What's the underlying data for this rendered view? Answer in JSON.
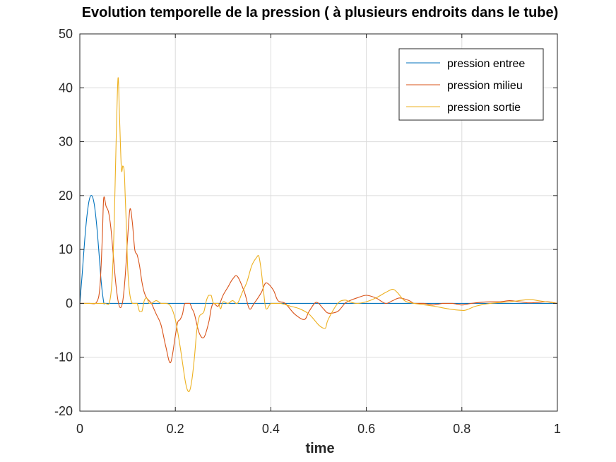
{
  "chart_data": {
    "type": "line",
    "title": "Evolution temporelle de la pression ( à plusieurs endroits dans le tube)",
    "xlabel": "time",
    "ylabel": "",
    "xlim": [
      0,
      1
    ],
    "ylim": [
      -20,
      50
    ],
    "xticks": [
      0,
      0.2,
      0.4,
      0.6,
      0.8,
      1
    ],
    "xtick_labels": [
      "0",
      "0.2",
      "0.4",
      "0.6",
      "0.8",
      "1"
    ],
    "yticks": [
      -20,
      -10,
      0,
      10,
      20,
      30,
      40,
      50
    ],
    "ytick_labels": [
      "-20",
      "-10",
      "0",
      "10",
      "20",
      "30",
      "40",
      "50"
    ],
    "grid": true,
    "legend_position": "top-right",
    "series": [
      {
        "name": "pression entree",
        "color": "#0072BD",
        "x": [
          0,
          0.005,
          0.01,
          0.015,
          0.02,
          0.025,
          0.03,
          0.035,
          0.04,
          0.045,
          0.05,
          0.052,
          0.06,
          0.2,
          0.4,
          0.6,
          0.8,
          1.0
        ],
        "y": [
          0,
          5.5,
          11.5,
          16.3,
          19.3,
          20.0,
          18.5,
          14.8,
          9.5,
          3.8,
          0.2,
          0,
          0,
          0,
          0,
          0,
          0,
          0
        ]
      },
      {
        "name": "pression milieu",
        "color": "#D95319",
        "x": [
          0,
          0.02,
          0.035,
          0.042,
          0.047,
          0.05,
          0.055,
          0.06,
          0.065,
          0.07,
          0.075,
          0.08,
          0.085,
          0.09,
          0.095,
          0.1,
          0.105,
          0.11,
          0.115,
          0.12,
          0.125,
          0.13,
          0.135,
          0.14,
          0.145,
          0.15,
          0.155,
          0.16,
          0.17,
          0.18,
          0.19,
          0.2,
          0.205,
          0.21,
          0.215,
          0.22,
          0.23,
          0.235,
          0.24,
          0.25,
          0.26,
          0.27,
          0.275,
          0.28,
          0.29,
          0.3,
          0.31,
          0.32,
          0.33,
          0.345,
          0.355,
          0.365,
          0.38,
          0.39,
          0.405,
          0.415,
          0.43,
          0.45,
          0.47,
          0.48,
          0.495,
          0.51,
          0.52,
          0.54,
          0.555,
          0.565,
          0.58,
          0.6,
          0.62,
          0.64,
          0.655,
          0.67,
          0.69,
          0.7,
          0.72,
          0.74,
          0.76,
          0.78,
          0.8,
          0.82,
          0.84,
          0.86,
          0.88,
          0.9,
          0.92,
          0.94,
          0.96,
          0.98,
          1.0
        ],
        "y": [
          0,
          0,
          0.2,
          3,
          12,
          19.5,
          18,
          17,
          14,
          9,
          4,
          0.5,
          -0.8,
          0.5,
          5,
          12,
          17.5,
          15,
          10,
          9,
          7,
          4,
          2,
          1,
          0.5,
          0,
          -1,
          -2,
          -4,
          -8,
          -11,
          -6,
          -3.5,
          -3,
          -2,
          0,
          0,
          -1,
          -2,
          -5.5,
          -6.3,
          -3.5,
          -1,
          0,
          -0.5,
          1.5,
          3,
          4.5,
          5,
          2,
          -1,
          0,
          2,
          3.8,
          2.5,
          0.5,
          0,
          -2,
          -3,
          -1.5,
          0.2,
          -1,
          -1.8,
          -1.5,
          0,
          0.5,
          1,
          1.5,
          1,
          0,
          0.5,
          1,
          0.5,
          0,
          0,
          -0.3,
          0,
          0,
          -0.3,
          0,
          0.2,
          0.3,
          0.3,
          0.5,
          0.3,
          0.1,
          0.2,
          0.3,
          0
        ]
      },
      {
        "name": "pression sortie",
        "color": "#EDB120",
        "x": [
          0,
          0.05,
          0.062,
          0.068,
          0.072,
          0.076,
          0.08,
          0.083,
          0.087,
          0.09,
          0.093,
          0.095,
          0.098,
          0.1,
          0.103,
          0.106,
          0.11,
          0.115,
          0.12,
          0.125,
          0.13,
          0.135,
          0.14,
          0.145,
          0.15,
          0.16,
          0.17,
          0.18,
          0.19,
          0.2,
          0.21,
          0.22,
          0.225,
          0.23,
          0.235,
          0.24,
          0.245,
          0.25,
          0.255,
          0.26,
          0.265,
          0.27,
          0.275,
          0.28,
          0.29,
          0.295,
          0.3,
          0.31,
          0.32,
          0.33,
          0.34,
          0.35,
          0.36,
          0.37,
          0.375,
          0.38,
          0.385,
          0.39,
          0.4,
          0.41,
          0.42,
          0.44,
          0.46,
          0.48,
          0.5,
          0.51,
          0.515,
          0.52,
          0.54,
          0.555,
          0.565,
          0.58,
          0.6,
          0.62,
          0.64,
          0.655,
          0.665,
          0.68,
          0.7,
          0.74,
          0.77,
          0.8,
          0.81,
          0.83,
          0.86,
          0.9,
          0.94,
          0.96,
          1.0
        ],
        "y": [
          0,
          0,
          0.2,
          5,
          15,
          30,
          41.8,
          35,
          25,
          25.5,
          24.5,
          20,
          13,
          7,
          3,
          1,
          0,
          0,
          0,
          -1.5,
          -1.5,
          0.5,
          1,
          0,
          0,
          0.5,
          0,
          0,
          -0.5,
          -3,
          -8,
          -14,
          -16,
          -16.2,
          -14,
          -10,
          -5,
          -2.5,
          -2,
          -1.5,
          0.5,
          1.5,
          1.5,
          0,
          0,
          -1,
          0.3,
          0,
          0.5,
          0,
          2,
          4,
          7,
          8.5,
          8.7,
          6,
          2,
          -1,
          0,
          0,
          0,
          -0.5,
          -1,
          -2,
          -4,
          -4.6,
          -4.5,
          -3,
          0,
          0.6,
          0.3,
          0,
          0.3,
          1,
          2,
          2.6,
          2,
          0.5,
          0,
          -0.5,
          -1,
          -1.3,
          -1.2,
          -0.5,
          0,
          0.3,
          0.7,
          0.5,
          0
        ]
      }
    ]
  }
}
